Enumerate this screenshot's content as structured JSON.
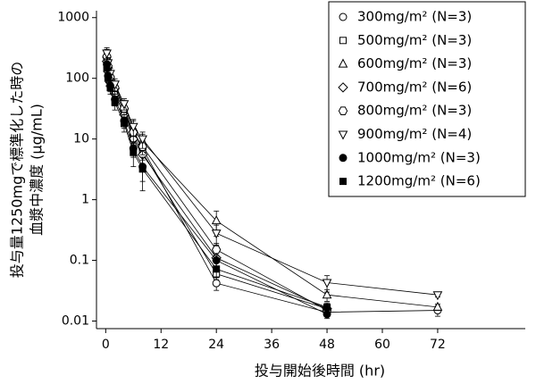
{
  "chart_data": {
    "type": "line",
    "xlabel": "投与開始後時間 (hr)",
    "ylabel": [
      "投与量1250mgで標準化した時の",
      "血漿中濃度 (μg/mL)"
    ],
    "log_y": true,
    "legend": "upper right",
    "color": "#000000",
    "x": [
      0.25,
      0.5,
      1,
      2,
      4,
      6,
      8,
      24,
      48,
      72
    ],
    "xlim": [
      -2,
      91
    ],
    "xticks": [
      0,
      12,
      24,
      36,
      48,
      60,
      72
    ],
    "ylim": [
      0.0075,
      1300
    ],
    "yticks": [
      0.01,
      0.1,
      1,
      10,
      100,
      1000
    ],
    "series": [
      {
        "name": "300mg/m² (N=3)",
        "marker": "circle",
        "filled": false,
        "values": [
          220,
          150,
          100,
          70,
          30,
          12,
          7,
          0.042,
          0.014,
          0.015
        ],
        "errors": [
          60,
          40,
          25,
          15,
          8,
          4,
          2,
          0.01,
          0.002,
          0.003
        ]
      },
      {
        "name": "500mg/m² (N=3)",
        "marker": "square",
        "filled": false,
        "values": [
          200,
          140,
          90,
          60,
          28,
          11,
          6,
          0.06,
          0.016,
          null
        ],
        "errors": [
          40,
          30,
          20,
          12,
          6,
          3,
          1.5,
          0.012,
          0.002,
          null
        ]
      },
      {
        "name": "600mg/m² (N=3)",
        "marker": "triangle",
        "filled": false,
        "values": [
          250,
          170,
          110,
          75,
          35,
          15,
          9,
          0.45,
          0.027,
          0.017
        ],
        "errors": [
          50,
          35,
          25,
          15,
          8,
          5,
          3,
          0.2,
          0.006,
          0.002
        ]
      },
      {
        "name": "700mg/m² (N=6)",
        "marker": "diamond",
        "filled": false,
        "values": [
          190,
          130,
          85,
          55,
          25,
          10,
          5.5,
          0.11,
          0.016,
          null
        ],
        "errors": [
          50,
          30,
          20,
          12,
          7,
          4,
          2.5,
          0.03,
          0.003,
          null
        ]
      },
      {
        "name": "800mg/m² (N=3)",
        "marker": "hexagon",
        "filled": false,
        "values": [
          230,
          160,
          105,
          70,
          32,
          13,
          7.5,
          0.15,
          0.015,
          null
        ],
        "errors": [
          50,
          35,
          20,
          15,
          7,
          4,
          2,
          0.04,
          0.002,
          null
        ]
      },
      {
        "name": "900mg/m² (N=4)",
        "marker": "triangle-down",
        "filled": false,
        "values": [
          260,
          180,
          120,
          80,
          38,
          16,
          10,
          0.28,
          0.043,
          0.027
        ],
        "errors": [
          60,
          40,
          25,
          18,
          8,
          5,
          3,
          0.1,
          0.013,
          0.002
        ]
      },
      {
        "name": "1000mg/m² (N=3)",
        "marker": "circle",
        "filled": true,
        "values": [
          170,
          110,
          75,
          45,
          20,
          7,
          3.5,
          0.1,
          0.013,
          null
        ],
        "errors": [
          40,
          25,
          15,
          10,
          5,
          2,
          1.5,
          0.02,
          0.002,
          null
        ]
      },
      {
        "name": "1200mg/m² (N=6)",
        "marker": "square",
        "filled": true,
        "values": [
          150,
          100,
          70,
          40,
          18,
          6,
          3.2,
          0.072,
          0.017,
          null
        ],
        "errors": [
          40,
          25,
          15,
          10,
          5,
          2.5,
          1.8,
          0.02,
          0.003,
          null
        ]
      }
    ]
  }
}
